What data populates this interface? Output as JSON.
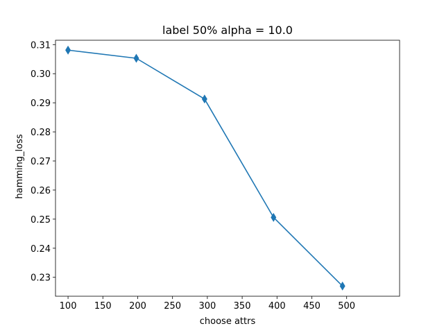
{
  "chart_data": {
    "type": "line",
    "title": "label 50% alpha = 10.0",
    "xlabel": "choose attrs",
    "ylabel": "hamming_loss",
    "xlim": [
      82,
      576
    ],
    "ylim": [
      0.2235,
      0.3115
    ],
    "xticks": [
      100,
      150,
      200,
      250,
      300,
      350,
      400,
      450,
      500
    ],
    "yticks": [
      0.23,
      0.24,
      0.25,
      0.26,
      0.27,
      0.28,
      0.29,
      0.3,
      0.31
    ],
    "ytick_labels": [
      "0.23",
      "0.24",
      "0.25",
      "0.26",
      "0.27",
      "0.28",
      "0.29",
      "0.30",
      "0.31"
    ],
    "grid": false,
    "series": [
      {
        "marker": "thin_diamond",
        "color": "#1f77b4",
        "x": [
          100,
          198,
          296,
          395,
          494
        ],
        "y": [
          0.3081,
          0.3053,
          0.2913,
          0.2506,
          0.227
        ]
      }
    ]
  }
}
